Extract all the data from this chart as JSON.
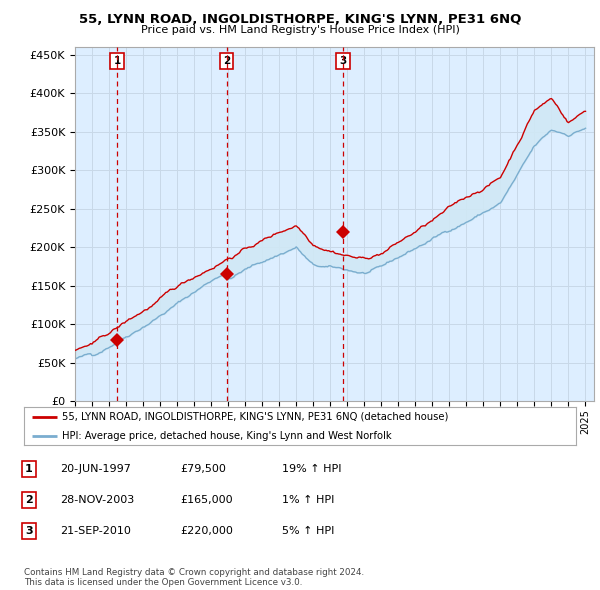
{
  "title": "55, LYNN ROAD, INGOLDISTHORPE, KING'S LYNN, PE31 6NQ",
  "subtitle": "Price paid vs. HM Land Registry's House Price Index (HPI)",
  "ylabel_ticks": [
    "£0",
    "£50K",
    "£100K",
    "£150K",
    "£200K",
    "£250K",
    "£300K",
    "£350K",
    "£400K",
    "£450K"
  ],
  "ytick_values": [
    0,
    50000,
    100000,
    150000,
    200000,
    250000,
    300000,
    350000,
    400000,
    450000
  ],
  "ylim": [
    0,
    460000
  ],
  "xlim_start": 1995.0,
  "xlim_end": 2025.5,
  "sale_dates": [
    1997.47,
    2003.91,
    2010.75
  ],
  "sale_prices": [
    79500,
    165000,
    220000
  ],
  "sale_labels": [
    "1",
    "2",
    "3"
  ],
  "legend_line1": "55, LYNN ROAD, INGOLDISTHORPE, KING'S LYNN, PE31 6NQ (detached house)",
  "legend_line2": "HPI: Average price, detached house, King's Lynn and West Norfolk",
  "table_data": [
    [
      "1",
      "20-JUN-1997",
      "£79,500",
      "19% ↑ HPI"
    ],
    [
      "2",
      "28-NOV-2003",
      "£165,000",
      "1% ↑ HPI"
    ],
    [
      "3",
      "21-SEP-2010",
      "£220,000",
      "5% ↑ HPI"
    ]
  ],
  "footnote": "Contains HM Land Registry data © Crown copyright and database right 2024.\nThis data is licensed under the Open Government Licence v3.0.",
  "line_color_red": "#cc0000",
  "line_color_blue": "#7aadcf",
  "fill_color": "#d0e8f5",
  "grid_color": "#c8d8e8",
  "background_color": "#ffffff",
  "chart_bg": "#ddeeff"
}
